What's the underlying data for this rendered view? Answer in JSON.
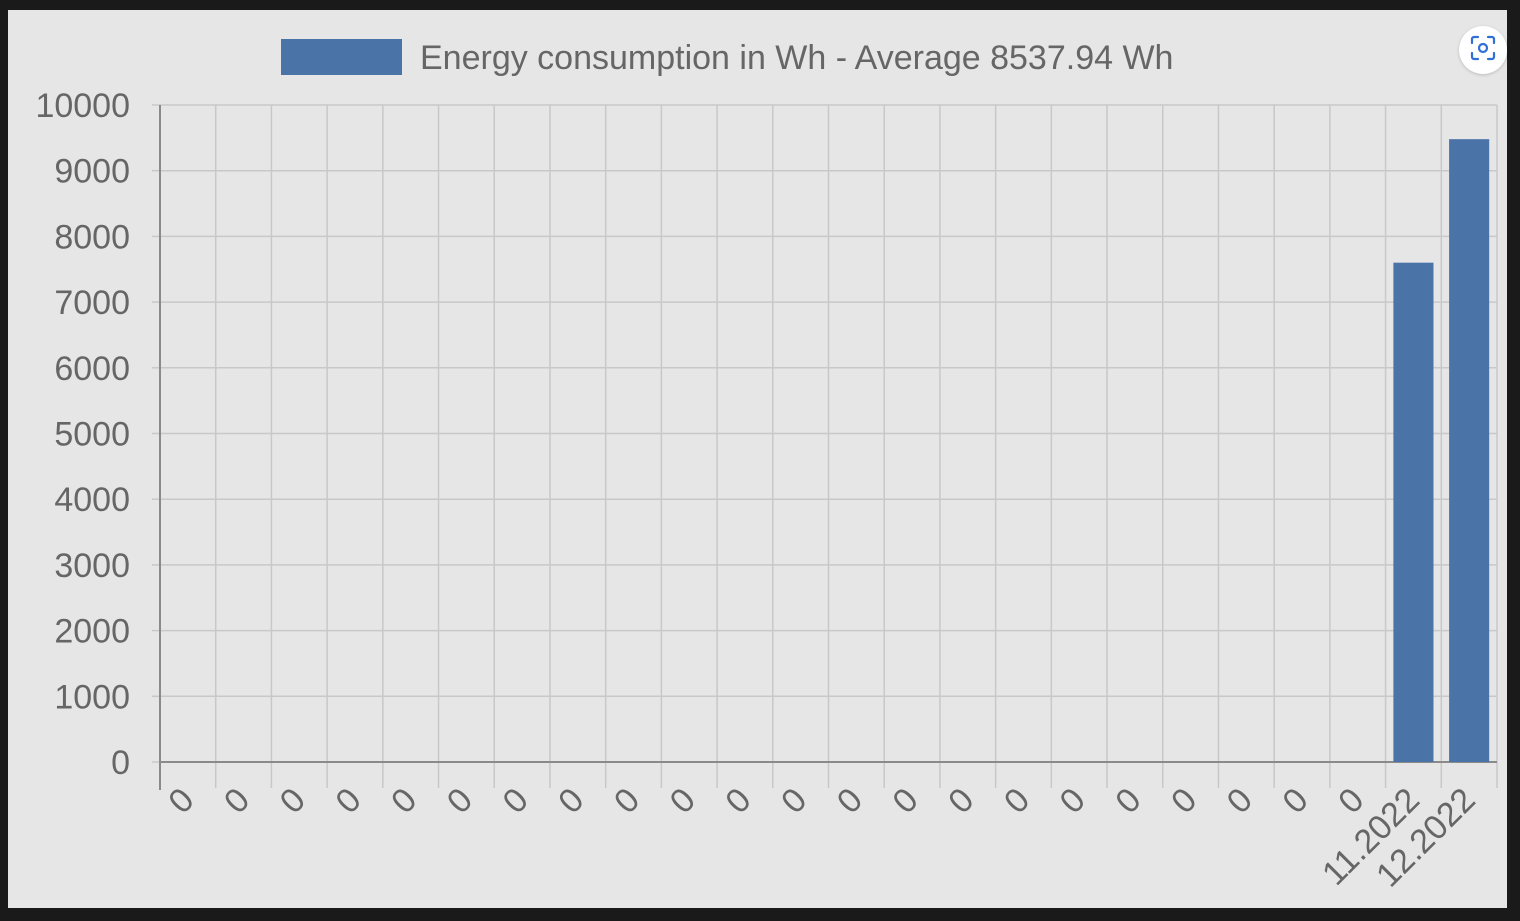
{
  "colors": {
    "bar": "#4a74a8",
    "grid": "#c8c8c8",
    "axis": "#8a8a8a",
    "text": "#666666",
    "background": "#e6e6e6"
  },
  "lens_button": {
    "icon": "lens-scan-icon"
  },
  "chart_data": {
    "type": "bar",
    "legend": {
      "label": "Energy consumption in Wh - Average 8537.94 Wh",
      "position": "top-center"
    },
    "categories": [
      "0",
      "0",
      "0",
      "0",
      "0",
      "0",
      "0",
      "0",
      "0",
      "0",
      "0",
      "0",
      "0",
      "0",
      "0",
      "0",
      "0",
      "0",
      "0",
      "0",
      "0",
      "0",
      "11.2022",
      "12.2022"
    ],
    "series": [
      {
        "name": "Energy consumption in Wh - Average 8537.94 Wh",
        "values": [
          0,
          0,
          0,
          0,
          0,
          0,
          0,
          0,
          0,
          0,
          0,
          0,
          0,
          0,
          0,
          0,
          0,
          0,
          0,
          0,
          0,
          0,
          7600,
          9480
        ]
      }
    ],
    "ylim": [
      0,
      10000
    ],
    "yticks": [
      0,
      1000,
      2000,
      3000,
      4000,
      5000,
      6000,
      7000,
      8000,
      9000,
      10000
    ],
    "grid": true
  }
}
